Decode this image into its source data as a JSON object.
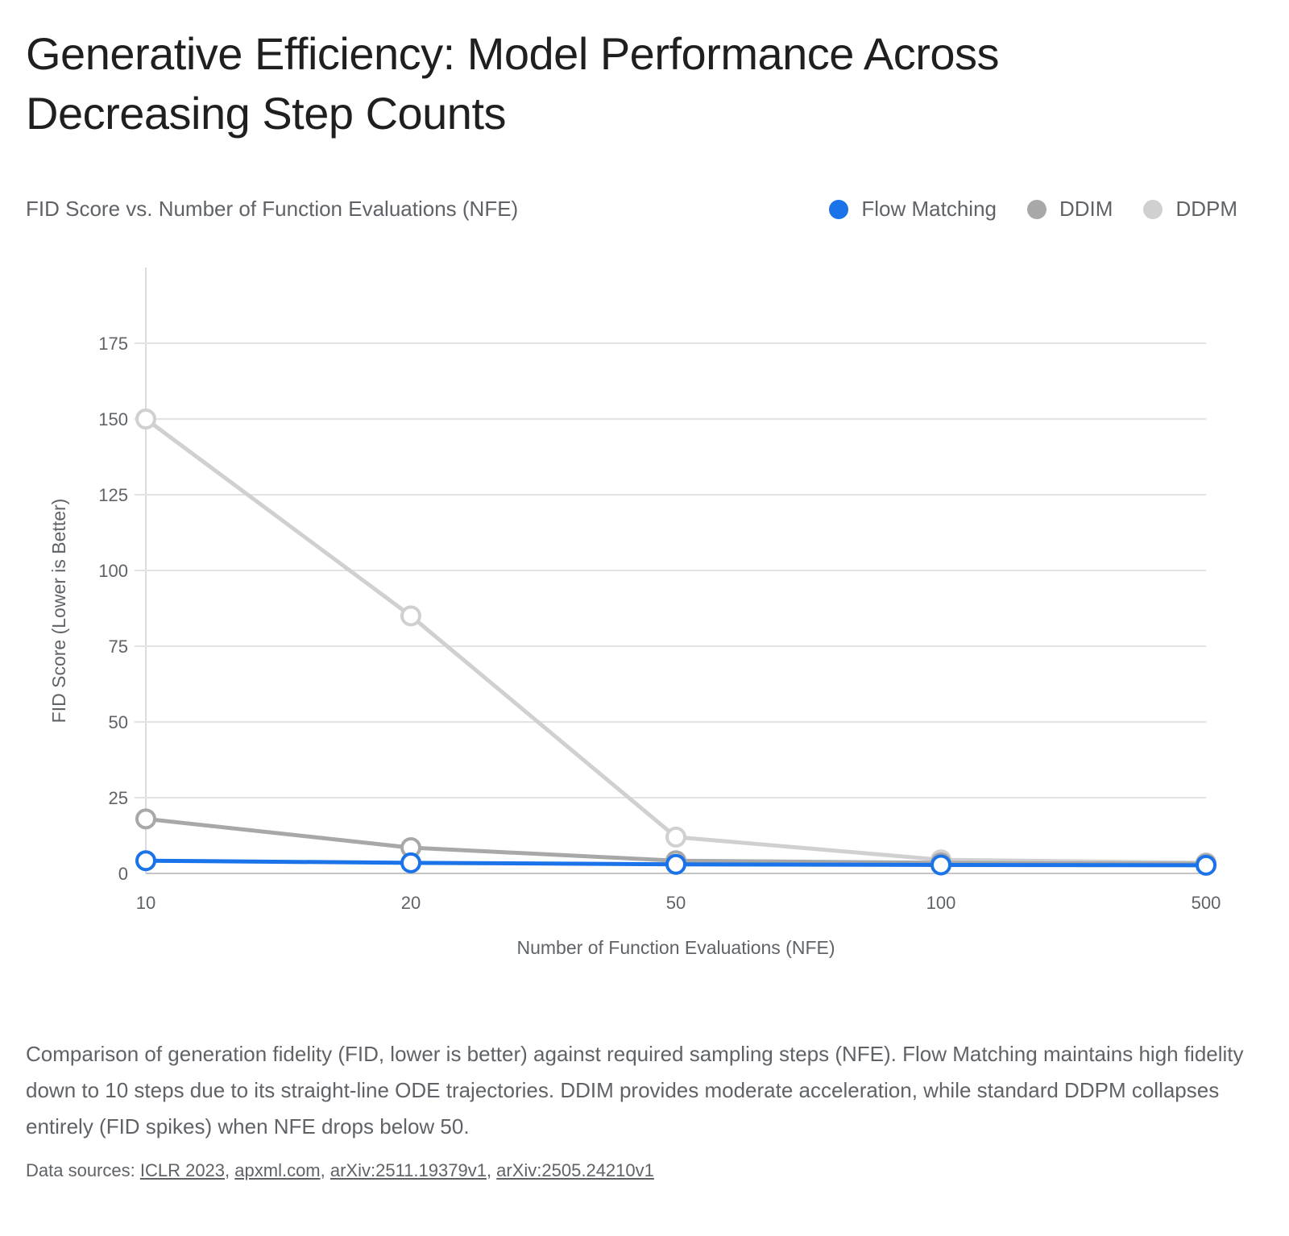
{
  "title": "Generative Efficiency: Model Performance Across Decreasing Step Counts",
  "subtitle": "FID Score vs. Number of Function Evaluations (NFE)",
  "legend": [
    {
      "label": "Flow Matching",
      "color": "#1a73e8"
    },
    {
      "label": "DDIM",
      "color": "#a8a8a8"
    },
    {
      "label": "DDPM",
      "color": "#d0d0d0"
    }
  ],
  "chart_data": {
    "type": "line",
    "categories": [
      "10",
      "20",
      "50",
      "100",
      "500"
    ],
    "series": [
      {
        "name": "DDPM",
        "color": "#d0d0d0",
        "values": [
          150,
          85,
          12,
          4.5,
          3.5
        ]
      },
      {
        "name": "DDIM",
        "color": "#a8a8a8",
        "values": [
          18,
          8.5,
          4.2,
          3.5,
          3.2
        ]
      },
      {
        "name": "Flow Matching",
        "color": "#1a73e8",
        "values": [
          4.2,
          3.5,
          3,
          2.8,
          2.7
        ]
      }
    ],
    "xlabel": "Number of Function Evaluations (NFE)",
    "ylabel": "FID Score (Lower is Better)",
    "ylim": [
      0,
      200
    ],
    "yticks": [
      0,
      25,
      50,
      75,
      100,
      125,
      150,
      175
    ],
    "grid": true,
    "legend_position": "top-right"
  },
  "caption": "Comparison of generation fidelity (FID, lower is better) against required sampling steps (NFE). Flow Matching maintains high fidelity down to 10 steps due to its straight-line ODE trajectories. DDIM provides moderate acceleration, while standard DDPM collapses entirely (FID spikes) when NFE drops below 50.",
  "sources": {
    "prefix": "Data sources: ",
    "links": [
      "ICLR 2023",
      "apxml.com",
      "arXiv:2511.19379v1",
      "arXiv:2505.24210v1"
    ]
  }
}
